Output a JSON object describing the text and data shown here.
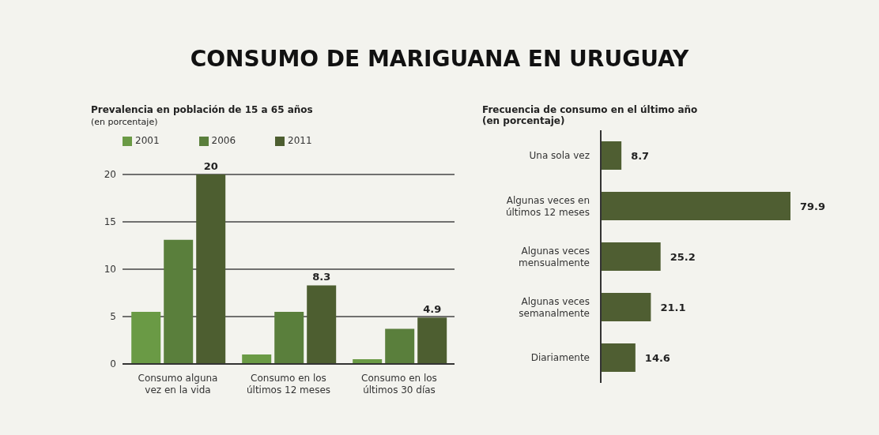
{
  "chart_data": [
    {
      "type": "bar",
      "title": "CONSUMO DE MARIGUANA EN URUGUAY",
      "subtitle": "Prevalencia en población de 15 a 65 años",
      "annotations": [
        "(en porcentaje)"
      ],
      "categories": [
        "Consumo alguna vez en la vida",
        "Consumo en los últimos 12 meses",
        "Consumo en los últimos 30 días"
      ],
      "series": [
        {
          "name": "2001",
          "color": "#6a9a45",
          "values": [
            5.5,
            1.0,
            0.5
          ]
        },
        {
          "name": "2006",
          "color": "#5a7f3c",
          "values": [
            13.1,
            5.5,
            3.7
          ]
        },
        {
          "name": "2011",
          "color": "#4d5e30",
          "values": [
            20,
            8.3,
            4.9
          ],
          "value_labels": [
            "20",
            "8.3",
            "4.9"
          ]
        }
      ],
      "ylim": [
        0,
        20
      ],
      "yticks": [
        0,
        5,
        10,
        15,
        20
      ],
      "grid": "y",
      "legend": "top left"
    },
    {
      "type": "bar",
      "orientation": "horizontal",
      "title": "Frecuencia de consumo en el último año",
      "subtitle": "(en porcentaje)",
      "categories": [
        "Una sola vez",
        "Algunas veces en últimos 12 meses",
        "Algunas veces mensualmente",
        "Algunas veces semanalmente",
        "Diariamente"
      ],
      "values": [
        8.7,
        79.9,
        25.2,
        21.1,
        14.6
      ],
      "color": "#4f5e32",
      "data_labels": true,
      "tick_labels": "y"
    }
  ]
}
